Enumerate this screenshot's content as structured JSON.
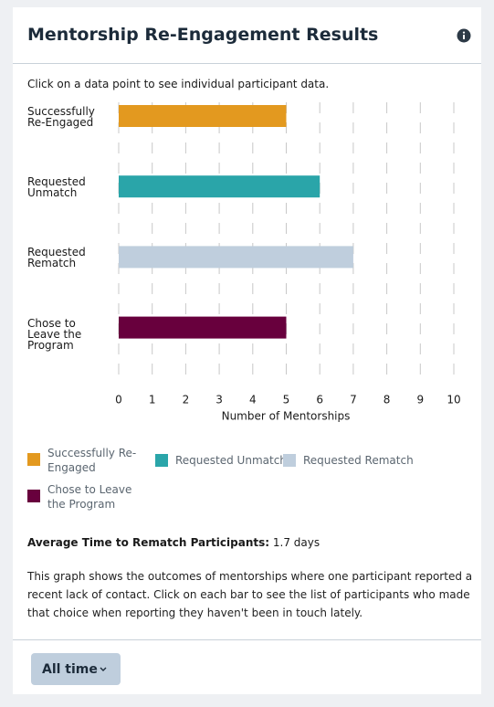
{
  "header": {
    "title": "Mentorship Re-Engagement Results"
  },
  "instruction": "Click on a data point to see individual participant data.",
  "chart_data": {
    "type": "bar",
    "orientation": "horizontal",
    "categories": [
      "Successfully Re-Engaged",
      "Requested Unmatch",
      "Requested Rematch",
      "Chose to Leave the Program"
    ],
    "values": [
      5,
      6,
      7,
      5
    ],
    "colors": [
      "#e3991f",
      "#2aa5a9",
      "#bfcedd",
      "#68003d"
    ],
    "x_label": "Number of Mentorships",
    "xlim": [
      0,
      10
    ],
    "xticks": [
      0,
      1,
      2,
      3,
      4,
      5,
      6,
      7,
      8,
      9,
      10
    ],
    "grid": true
  },
  "summary": {
    "label": "Average Time to Rematch Participants:",
    "value": "1.7 days"
  },
  "description": "This graph shows the outcomes of mentorships where one participant reported a recent lack of contact. Click on each bar to see the list of participants who made that choice when reporting they haven't been in touch lately.",
  "footer": {
    "button": "All time"
  }
}
